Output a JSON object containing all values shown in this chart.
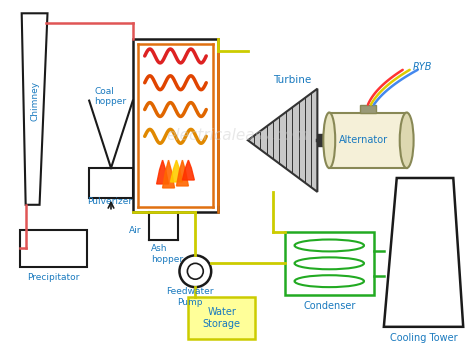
{
  "bg_color": "#ffffff",
  "watermark": "electricaleasy.com",
  "watermark_color": "#cccccc",
  "label_color": "#1a7abf",
  "chimney_label": "Chimney",
  "coal_hopper_label": "Coal\nhopper",
  "pulverizer_label": "Pulverizer",
  "air_label": "Air",
  "ash_hopper_label": "Ash\nhopper",
  "precipitator_label": "Precipitator",
  "turbine_label": "Turbine",
  "alternator_label": "Alternator",
  "feedwater_pump_label": "Feedwater\nPump",
  "water_storage_label": "Water\nStorage",
  "condenser_label": "Condenser",
  "cooling_tower_label": "Cooling Tower",
  "ryb_label": "RYB"
}
